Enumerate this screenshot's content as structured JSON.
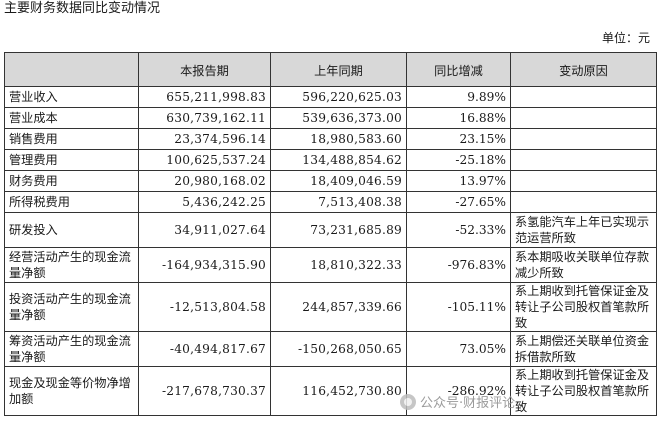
{
  "title": "主要财务数据同比变动情况",
  "unit": "单位：元",
  "table": {
    "headers": [
      "",
      "本报告期",
      "上年同期",
      "同比增减",
      "变动原因"
    ],
    "rows": [
      {
        "name": "营业收入",
        "current": "655,211,998.83",
        "prior": "596,220,625.03",
        "change": "9.89%",
        "reason": ""
      },
      {
        "name": "营业成本",
        "current": "630,739,162.11",
        "prior": "539,636,373.00",
        "change": "16.88%",
        "reason": ""
      },
      {
        "name": "销售费用",
        "current": "23,374,596.14",
        "prior": "18,980,583.60",
        "change": "23.15%",
        "reason": ""
      },
      {
        "name": "管理费用",
        "current": "100,625,537.24",
        "prior": "134,488,854.62",
        "change": "-25.18%",
        "reason": ""
      },
      {
        "name": "财务费用",
        "current": "20,980,168.02",
        "prior": "18,409,046.59",
        "change": "13.97%",
        "reason": ""
      },
      {
        "name": "所得税费用",
        "current": "5,436,242.25",
        "prior": "7,513,408.38",
        "change": "-27.65%",
        "reason": ""
      },
      {
        "name": "研发投入",
        "current": "34,911,027.64",
        "prior": "73,231,685.89",
        "change": "-52.33%",
        "reason": "系氢能汽车上年已实现示范运营所致"
      },
      {
        "name": "经营活动产生的现金流量净额",
        "current": "-164,934,315.90",
        "prior": "18,810,322.33",
        "change": "-976.83%",
        "reason": "系本期吸收关联单位存款减少所致"
      },
      {
        "name": "投资活动产生的现金流量净额",
        "current": "-12,513,804.58",
        "prior": "244,857,339.66",
        "change": "-105.11%",
        "reason": "系上期收到托管保证金及转让子公司股权首笔款所致"
      },
      {
        "name": "筹资活动产生的现金流量净额",
        "current": "-40,494,817.67",
        "prior": "-150,268,050.65",
        "change": "73.05%",
        "reason": "系上期偿还关联单位资金拆借款所致"
      },
      {
        "name": "现金及现金等价物净增加额",
        "current": "-217,678,730.37",
        "prior": "116,452,730.80",
        "change": "-286.92%",
        "reason": "系上期收到托管保证金及转让子公司股权首笔款所致"
      }
    ]
  },
  "watermark": "公众号·财报评论"
}
